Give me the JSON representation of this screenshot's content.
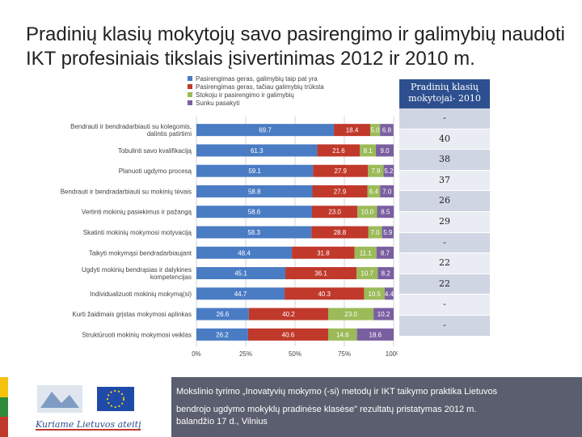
{
  "title": "Pradinių klasių mokytojų savo pasirengimo ir galimybių naudoti IKT profesiniais tikslais įsivertinimas 2012 ir 2010 m.",
  "colors": {
    "s1": "#4a7cc4",
    "s2": "#c0392b",
    "s3": "#9bbb59",
    "s4": "#7a5fa0",
    "table_head": "#2d4f8f"
  },
  "chart_data": {
    "type": "bar",
    "orientation": "horizontal-stacked-100",
    "categories": [
      "Bendrauti ir bendradarbiauti su kolegomis, dalintis patirtimi",
      "Tobulinti savo kvalifikaciją",
      "Planuoti ugdymo procesą",
      "Bendrauti ir bendradarbiauti su mokinių tėvais",
      "Vertinti mokinių pasiekimus ir pažangą",
      "Skatinti mokinių mokymosi motyvaciją",
      "Taikyti mokymąsi bendradarbiaujant",
      "Ugdyti mokinių bendrąsias ir dalykines kompetencijas",
      "Individualizuoti mokinių mokymą(si)",
      "Kurti žaidimais grįstas mokymosi aplinkas",
      "Struktūruoti mokinių mokymosi veiklas"
    ],
    "series": [
      {
        "name": "Pasirengimas geras, galimybių taip pat yra",
        "values": [
          69.7,
          61.3,
          59.1,
          58.8,
          58.6,
          58.3,
          48.4,
          45.1,
          44.7,
          26.6,
          26.2
        ]
      },
      {
        "name": "Pasirengimas geras, tačiau galimybių trūksta",
        "values": [
          18.4,
          21.6,
          27.9,
          27.9,
          23.0,
          28.8,
          31.8,
          36.1,
          40.3,
          40.2,
          40.6
        ]
      },
      {
        "name": "Stokoju ir pasirengimo ir galimybių",
        "values": [
          5.0,
          8.1,
          7.9,
          6.4,
          10.0,
          7.0,
          11.1,
          10.7,
          10.5,
          23.0,
          14.6
        ]
      },
      {
        "name": "Sunku pasakyti",
        "values": [
          6.8,
          9.0,
          5.2,
          7.0,
          8.5,
          5.9,
          8.7,
          8.2,
          4.4,
          10.2,
          18.6
        ]
      }
    ],
    "labels": [
      [
        "69.7",
        "18.4",
        "5.0",
        "6.8"
      ],
      [
        "61.3",
        "21.6",
        "8.1",
        "9.0"
      ],
      [
        "59.1",
        "27.9",
        "7.9",
        "5.2"
      ],
      [
        "58.8",
        "27.9",
        "6.4",
        "7.0"
      ],
      [
        "58.6",
        "23.0",
        "10.0",
        "8.5"
      ],
      [
        "58.3",
        "28.8",
        "7.0",
        "5.9"
      ],
      [
        "48.4",
        "31.8",
        "11.1",
        "8.7"
      ],
      [
        "45.1",
        "36.1",
        "10.7",
        "8.2"
      ],
      [
        "44.7",
        "40.3",
        "10.5",
        "4.4"
      ],
      [
        "26.6",
        "40.2",
        "23.0",
        "10.2"
      ],
      [
        "26.2",
        "40.6",
        "14.6",
        "18.6"
      ]
    ],
    "xticks": [
      "0%",
      "25%",
      "50%",
      "75%",
      "100%"
    ],
    "xlim": [
      0,
      100
    ],
    "legend_position": "top"
  },
  "side_table": {
    "header": "Pradinių klasių mokytojai- 2010",
    "values": [
      "-",
      "40",
      "38",
      "37",
      "26",
      "29",
      "-",
      "22",
      "22",
      "-",
      "-"
    ]
  },
  "footer": {
    "logo_text": "Kuriame Lietuvos ateitį",
    "line1": "Mokslinio tyrimo „Inovatyvių mokymo (-si) metodų ir IKT taikymo praktika Lietuvos",
    "line2": "bendrojo ugdymo mokyklų pradinėse klasėse\" rezultatų pristatymas 2012 m.",
    "line3": "balandžio 17 d., Vilnius"
  }
}
